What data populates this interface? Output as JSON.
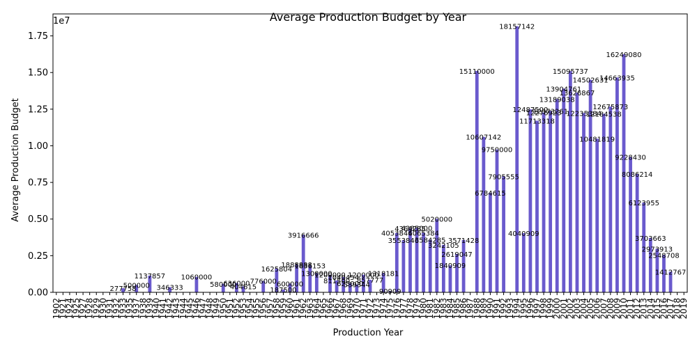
{
  "chart_data": {
    "type": "bar",
    "title": "Average Production Budget by Year",
    "xlabel": "Production Year",
    "ylabel": "Average Production Budget",
    "y_offset_text": "1e7",
    "ylim": [
      0,
      19000000
    ],
    "yticks": [
      0,
      2500000,
      5000000,
      7500000,
      10000000,
      12500000,
      15000000,
      17500000
    ],
    "ytick_labels": [
      "0.00",
      "0.25",
      "0.50",
      "0.75",
      "1.00",
      "1.25",
      "1.50",
      "1.75"
    ],
    "bar_color": "#6a5acd",
    "grid": false,
    "categories": [
      "1902",
      "1921",
      "1924",
      "1925",
      "1927",
      "1928",
      "1929",
      "1930",
      "1931",
      "1932",
      "1933",
      "1935",
      "1937",
      "1938",
      "1939",
      "1940",
      "1941",
      "1942",
      "1943",
      "1944",
      "1945",
      "1946",
      "1947",
      "1948",
      "1949",
      "1950",
      "1951",
      "1952",
      "1953",
      "1954",
      "1955",
      "1956",
      "1957",
      "1958",
      "1959",
      "1960",
      "1961",
      "1962",
      "1963",
      "1964",
      "1965",
      "1966",
      "1967",
      "1968",
      "1969",
      "1970",
      "1971",
      "1972",
      "1973",
      "1974",
      "1975",
      "1976",
      "1977",
      "1978",
      "1979",
      "1980",
      "1981",
      "1982",
      "1983",
      "1984",
      "1985",
      "1986",
      "1987",
      "1988",
      "1989",
      "1990",
      "1991",
      "1992",
      "1993",
      "1994",
      "1995",
      "1996",
      "1997",
      "1998",
      "1999",
      "2000",
      "2001",
      "2002",
      "2003",
      "2004",
      "2005",
      "2006",
      "2007",
      "2008",
      "2009",
      "2010",
      "2011",
      "2012",
      "2013",
      "2014",
      "2015",
      "2016",
      "2017",
      "2018",
      "2019"
    ],
    "values": [
      null,
      null,
      null,
      null,
      null,
      null,
      null,
      null,
      null,
      null,
      277758,
      null,
      500000,
      null,
      1137857,
      null,
      null,
      346333,
      null,
      null,
      null,
      1060000,
      null,
      null,
      null,
      580000,
      null,
      636000,
      404615,
      null,
      null,
      776000,
      null,
      1625804,
      187500,
      600000,
      1888888,
      3916666,
      1836153,
      1300000,
      null,
      1200000,
      811500,
      1040454,
      625000,
      539344,
      1200000,
      857777,
      null,
      1318181,
      90909,
      4053846,
      3553846,
      4364285,
      4385000,
      4065384,
      3584285,
      5020000,
      3242105,
      1840909,
      2619047,
      3571428,
      null,
      15110000,
      10607142,
      6784615,
      9750000,
      7905555,
      null,
      18157142,
      4040909,
      12487500,
      11713318,
      12276923,
      12373261,
      13189038,
      13904761,
      15095737,
      13626867,
      12235384,
      14502631,
      10481819,
      12184538,
      12675873,
      14663935,
      16249080,
      9228430,
      8086214,
      6123955,
      3703663,
      2973913,
      2548708,
      1412767
    ],
    "labels": [
      "",
      "",
      "",
      "",
      "",
      "",
      "",
      "",
      "",
      "",
      "277758",
      "",
      "500000",
      "",
      "1137857",
      "",
      "",
      "346333",
      "",
      "",
      "",
      "1060000",
      "",
      "",
      "",
      "580000",
      "",
      "636000",
      "404615",
      "",
      "",
      "776000",
      "",
      "1625804",
      "187500",
      "600000",
      "1888888",
      "3916666",
      "1836153",
      "1300000",
      "",
      "1200000",
      "811500",
      "1040454",
      "625000",
      "539344",
      "1200000",
      "857777",
      "",
      "1318181",
      "90909",
      "4053846",
      "3553846",
      "4364285",
      "4385000",
      "4065384",
      "3584285",
      "5020000",
      "3242105",
      "1840909",
      "2619047",
      "3571428",
      "",
      "15110000",
      "10607142",
      "6784615",
      "9750000",
      "7905555",
      "",
      "18157142",
      "4040909",
      "12487500",
      "11713318",
      "12276923",
      "12373261",
      "13189038",
      "13904761",
      "15095737",
      "13626867",
      "12235384",
      "14502631",
      "10481819",
      "12184538",
      "12675873",
      "14663935",
      "16249080",
      "9228430",
      "8086214",
      "6123955",
      "3703663",
      "2973913",
      "2548708",
      "1412767"
    ]
  }
}
